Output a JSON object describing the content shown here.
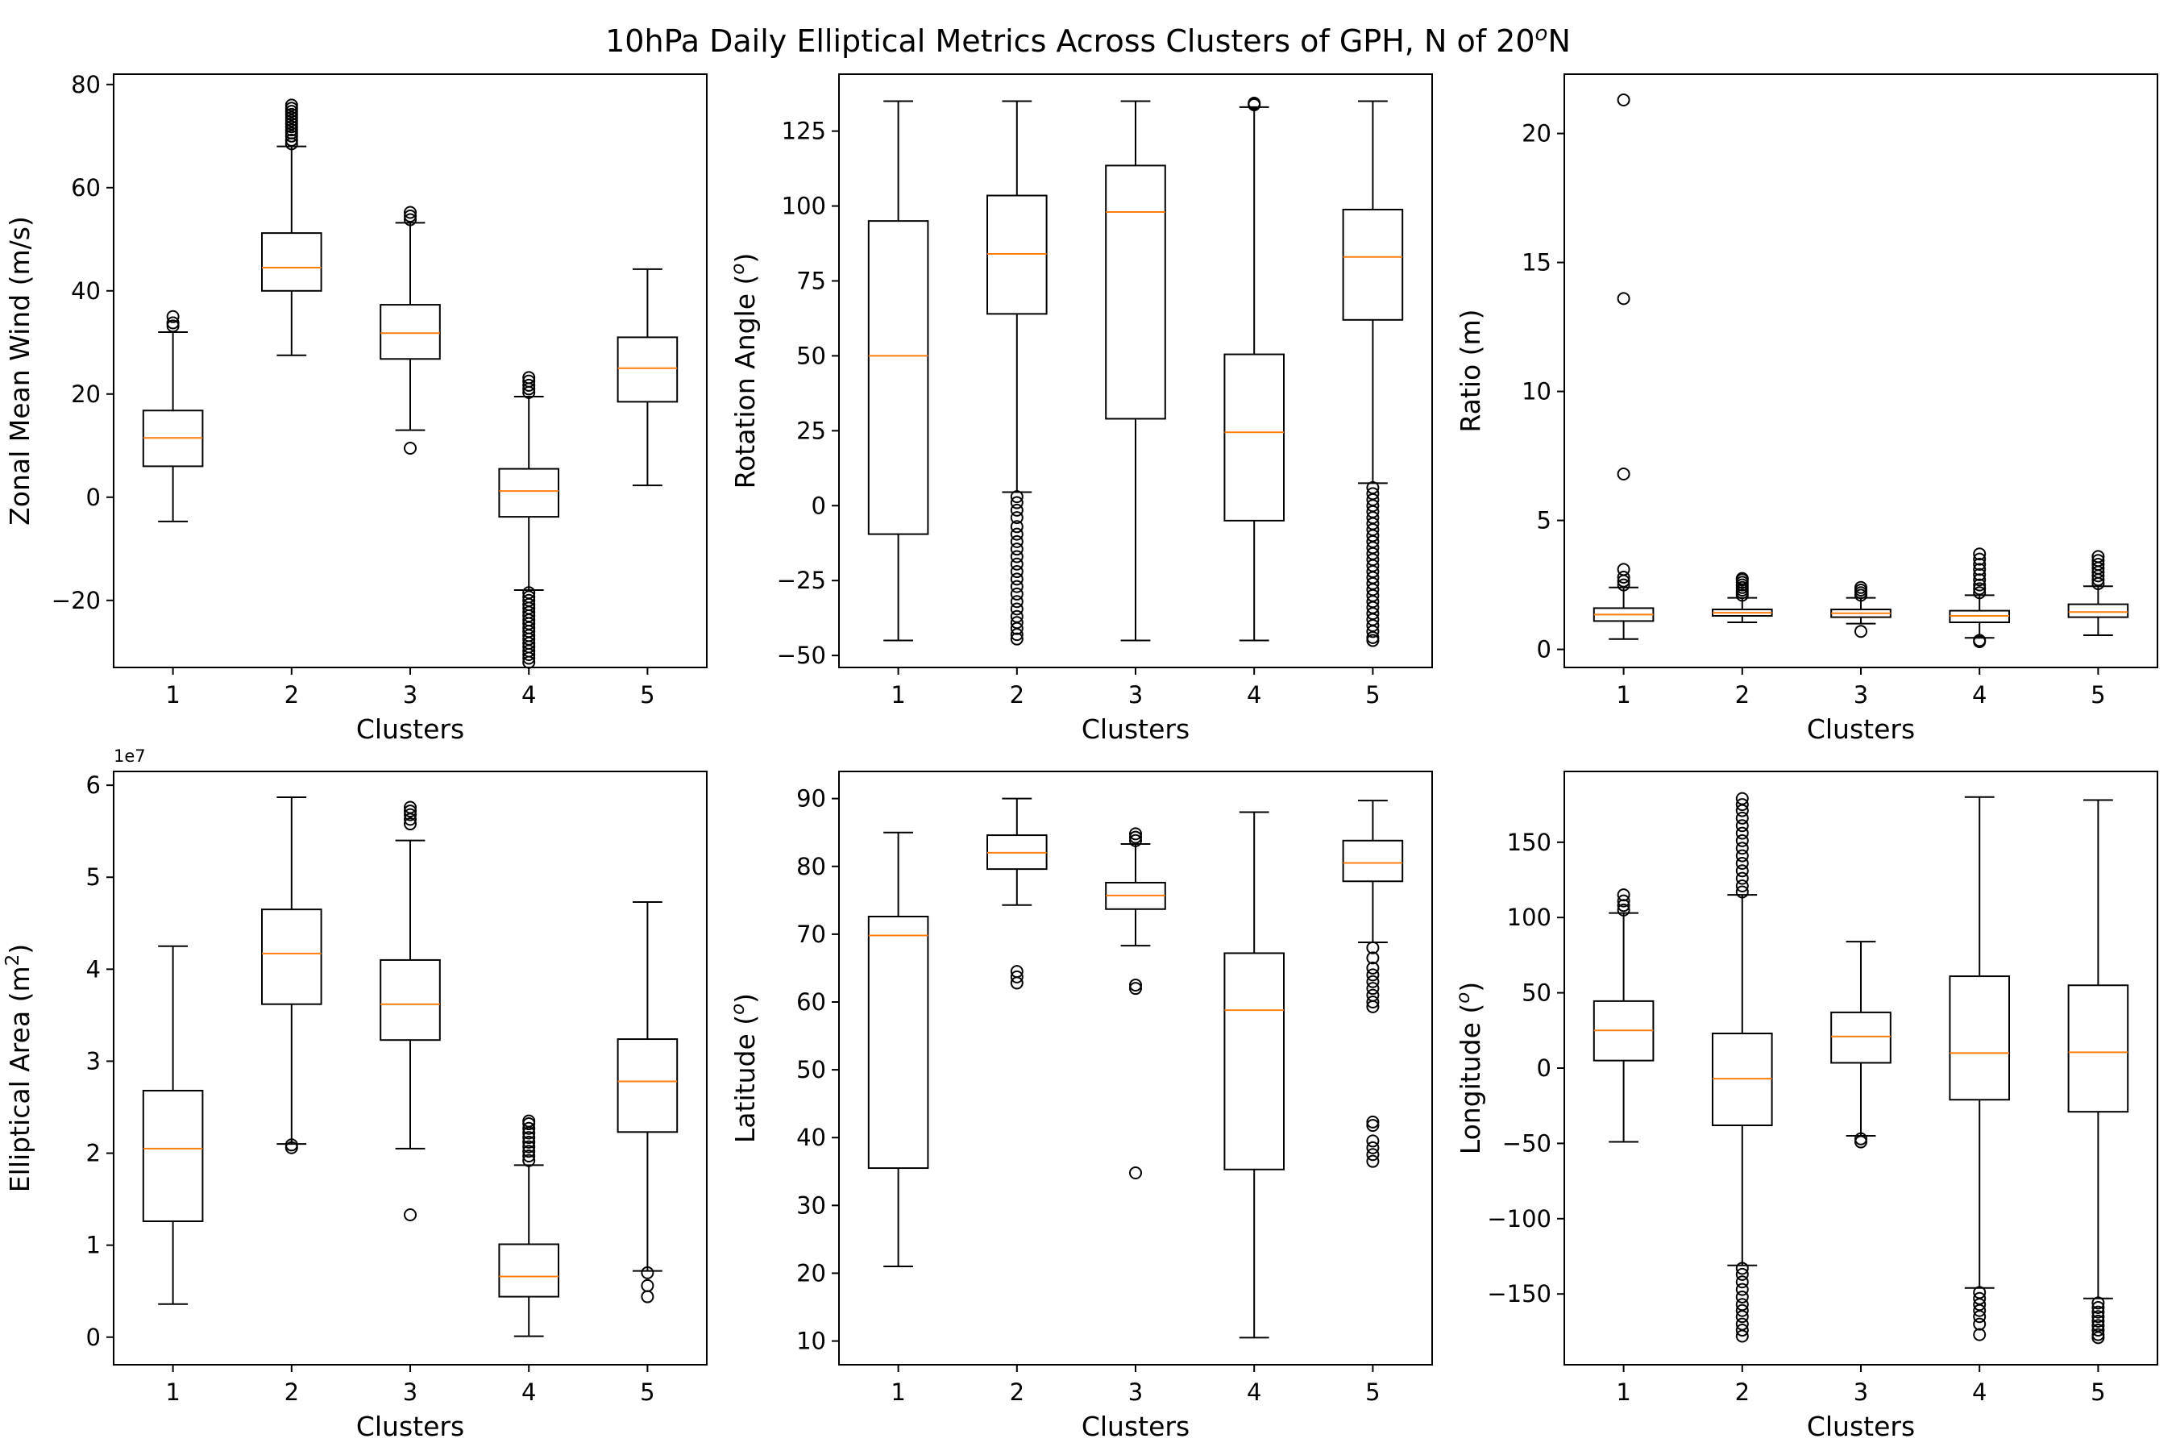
{
  "figure": {
    "title": "10hPa Daily Elliptical Metrics Across Clusters of GPH, N of 20",
    "title_sup": "o",
    "title_suffix": "N",
    "background": "#ffffff",
    "median_color": "#ff7f0e",
    "box_color": "#000000"
  },
  "chart_data": [
    {
      "type": "boxplot",
      "xlabel": "Clusters",
      "ylabel": "Zonal Mean Wind (m/s)",
      "ylabel_parts": [
        "Zonal Mean Wind (m/s)",
        "",
        ""
      ],
      "offset_text": "",
      "categories": [
        "1",
        "2",
        "3",
        "4",
        "5"
      ],
      "ylim": [
        -33,
        82
      ],
      "yticks": [
        -20,
        0,
        20,
        40,
        60,
        80
      ],
      "ytick_labels": [
        "−20",
        "0",
        "20",
        "40",
        "60",
        "80"
      ],
      "boxes": [
        {
          "whislo": -4.7,
          "q1": 6,
          "med": 11.5,
          "q3": 16.8,
          "whishi": 32,
          "fliers": [
            33.2,
            33.8,
            35
          ]
        },
        {
          "whislo": 27.5,
          "q1": 40,
          "med": 44.5,
          "q3": 51.2,
          "whishi": 68,
          "fliers": [
            68.5,
            69.2,
            70,
            70.6,
            71.2,
            71.8,
            72.4,
            73,
            73.6,
            74.2,
            74.8,
            75.4,
            76
          ]
        },
        {
          "whislo": 13,
          "q1": 26.8,
          "med": 31.8,
          "q3": 37.3,
          "whishi": 53.2,
          "fliers": [
            9.5,
            53.8,
            54.5,
            55.2
          ]
        },
        {
          "whislo": -18,
          "q1": -3.8,
          "med": 1.2,
          "q3": 5.5,
          "whishi": 19.5,
          "fliers": [
            20.3,
            21,
            21.7,
            22.5,
            23.2,
            -18.5,
            -19.3,
            -20,
            -20.8,
            -21.5,
            -22.3,
            -23,
            -23.8,
            -24.5,
            -25.3,
            -26,
            -26.8,
            -27.5,
            -28.3,
            -29,
            -29.8,
            -30.5,
            -31.2,
            -32
          ]
        },
        {
          "whislo": 2.3,
          "q1": 18.5,
          "med": 25,
          "q3": 31,
          "whishi": 44.2,
          "fliers": []
        }
      ]
    },
    {
      "type": "boxplot",
      "xlabel": "Clusters",
      "ylabel": "Rotation Angle (o)",
      "ylabel_parts": [
        "Rotation Angle (",
        "o",
        ")"
      ],
      "offset_text": "",
      "categories": [
        "1",
        "2",
        "3",
        "4",
        "5"
      ],
      "ylim": [
        -54,
        144
      ],
      "yticks": [
        -50,
        -25,
        0,
        25,
        50,
        75,
        100,
        125
      ],
      "ytick_labels": [
        "−50",
        "−25",
        "0",
        "25",
        "50",
        "75",
        "100",
        "125"
      ],
      "boxes": [
        {
          "whislo": -45,
          "q1": -9.5,
          "med": 50,
          "q3": 95,
          "whishi": 135,
          "fliers": []
        },
        {
          "whislo": 4.5,
          "q1": 64,
          "med": 84,
          "q3": 103.5,
          "whishi": 135,
          "fliers": [
            3,
            1,
            -1.5,
            -4,
            -7,
            -9.5,
            -12,
            -14.5,
            -17,
            -19.5,
            -22,
            -24.5,
            -27,
            -29.5,
            -32,
            -34.5,
            -37,
            -39,
            -41,
            -43,
            -44.5
          ]
        },
        {
          "whislo": -45,
          "q1": 29,
          "med": 98,
          "q3": 113.5,
          "whishi": 135,
          "fliers": []
        },
        {
          "whislo": -45,
          "q1": -5,
          "med": 24.5,
          "q3": 50.5,
          "whishi": 133,
          "fliers": [
            133.8,
            134.3
          ]
        },
        {
          "whislo": 7.5,
          "q1": 62,
          "med": 83,
          "q3": 98.8,
          "whishi": 135,
          "fliers": [
            6,
            4,
            2,
            0,
            -2,
            -4,
            -6,
            -8,
            -10,
            -12,
            -14,
            -16,
            -18,
            -20,
            -22,
            -24,
            -26,
            -28,
            -30,
            -32,
            -34,
            -36,
            -38,
            -40,
            -42,
            -44,
            -45
          ]
        }
      ]
    },
    {
      "type": "boxplot",
      "xlabel": "Clusters",
      "ylabel": "Ratio (m)",
      "ylabel_parts": [
        "Ratio (m)",
        "",
        ""
      ],
      "offset_text": "",
      "categories": [
        "1",
        "2",
        "3",
        "4",
        "5"
      ],
      "ylim": [
        -0.7,
        22.3
      ],
      "yticks": [
        0,
        5,
        10,
        15,
        20
      ],
      "ytick_labels": [
        "0",
        "5",
        "10",
        "15",
        "20"
      ],
      "boxes": [
        {
          "whislo": 0.4,
          "q1": 1.1,
          "med": 1.35,
          "q3": 1.6,
          "whishi": 2.4,
          "fliers": [
            2.5,
            2.65,
            2.8,
            3.1,
            6.8,
            13.6,
            21.3
          ]
        },
        {
          "whislo": 1.05,
          "q1": 1.3,
          "med": 1.42,
          "q3": 1.55,
          "whishi": 2.0,
          "fliers": [
            2.1,
            2.2,
            2.3,
            2.4,
            2.5,
            2.6,
            2.7,
            2.75
          ]
        },
        {
          "whislo": 1.0,
          "q1": 1.25,
          "med": 1.4,
          "q3": 1.55,
          "whishi": 2.0,
          "fliers": [
            0.7,
            2.1,
            2.2,
            2.3,
            2.4
          ]
        },
        {
          "whislo": 0.45,
          "q1": 1.05,
          "med": 1.3,
          "q3": 1.5,
          "whishi": 2.1,
          "fliers": [
            0.35,
            0.3,
            2.2,
            2.35,
            2.5,
            2.7,
            2.9,
            3.1,
            3.3,
            3.5,
            3.7
          ]
        },
        {
          "whislo": 0.55,
          "q1": 1.25,
          "med": 1.45,
          "q3": 1.75,
          "whishi": 2.45,
          "fliers": [
            2.55,
            2.7,
            2.85,
            3.0,
            3.15,
            3.3,
            3.45,
            3.6
          ]
        }
      ]
    },
    {
      "type": "boxplot",
      "xlabel": "Clusters",
      "ylabel": "Elliptical Area (m2)",
      "ylabel_parts": [
        "Elliptical Area (m",
        "2",
        ")"
      ],
      "offset_text": "1e7",
      "categories": [
        "1",
        "2",
        "3",
        "4",
        "5"
      ],
      "ylim": [
        -0.3,
        6.15
      ],
      "yticks": [
        0,
        1,
        2,
        3,
        4,
        5,
        6
      ],
      "ytick_labels": [
        "0",
        "1",
        "2",
        "3",
        "4",
        "5",
        "6"
      ],
      "boxes": [
        {
          "whislo": 0.36,
          "q1": 1.26,
          "med": 2.05,
          "q3": 2.68,
          "whishi": 4.25,
          "fliers": []
        },
        {
          "whislo": 2.1,
          "q1": 3.62,
          "med": 4.17,
          "q3": 4.65,
          "whishi": 5.87,
          "fliers": [
            2.06,
            2.09
          ]
        },
        {
          "whislo": 2.05,
          "q1": 3.23,
          "med": 3.62,
          "q3": 4.1,
          "whishi": 5.4,
          "fliers": [
            1.33,
            5.58,
            5.63,
            5.68,
            5.72,
            5.76
          ]
        },
        {
          "whislo": 0.01,
          "q1": 0.44,
          "med": 0.66,
          "q3": 1.01,
          "whishi": 1.87,
          "fliers": [
            1.92,
            1.97,
            2.02,
            2.07,
            2.12,
            2.17,
            2.22,
            2.27,
            2.32,
            2.35
          ]
        },
        {
          "whislo": 0.72,
          "q1": 2.23,
          "med": 2.78,
          "q3": 3.24,
          "whishi": 4.73,
          "fliers": [
            0.7,
            0.56,
            0.44
          ]
        }
      ]
    },
    {
      "type": "boxplot",
      "xlabel": "Clusters",
      "ylabel": "Latitude (o)",
      "ylabel_parts": [
        "Latitude (",
        "o",
        ")"
      ],
      "offset_text": "",
      "categories": [
        "1",
        "2",
        "3",
        "4",
        "5"
      ],
      "ylim": [
        6.5,
        94
      ],
      "yticks": [
        10,
        20,
        30,
        40,
        50,
        60,
        70,
        80,
        90
      ],
      "ytick_labels": [
        "10",
        "20",
        "30",
        "40",
        "50",
        "60",
        "70",
        "80",
        "90"
      ],
      "boxes": [
        {
          "whislo": 21,
          "q1": 35.5,
          "med": 69.8,
          "q3": 72.6,
          "whishi": 85,
          "fliers": []
        },
        {
          "whislo": 74.3,
          "q1": 79.6,
          "med": 82,
          "q3": 84.6,
          "whishi": 90,
          "fliers": [
            64.5,
            63.7,
            62.8
          ]
        },
        {
          "whislo": 68.3,
          "q1": 73.7,
          "med": 75.7,
          "q3": 77.6,
          "whishi": 83.3,
          "fliers": [
            34.8,
            62,
            62.5,
            83.8,
            84.3,
            84.8
          ]
        },
        {
          "whislo": 10.5,
          "q1": 35.3,
          "med": 58.8,
          "q3": 67.2,
          "whishi": 88,
          "fliers": []
        },
        {
          "whislo": 68.8,
          "q1": 77.8,
          "med": 80.5,
          "q3": 83.8,
          "whishi": 89.7,
          "fliers": [
            68,
            66.5,
            65,
            64,
            63,
            62,
            61,
            60,
            59.3,
            42.3,
            41.8,
            39.5,
            38.5,
            37.5,
            36.5
          ]
        }
      ]
    },
    {
      "type": "boxplot",
      "xlabel": "Clusters",
      "ylabel": "Longitude (o)",
      "ylabel_parts": [
        "Longitude (",
        "o",
        ")"
      ],
      "offset_text": "",
      "categories": [
        "1",
        "2",
        "3",
        "4",
        "5"
      ],
      "ylim": [
        -197,
        197
      ],
      "yticks": [
        -150,
        -100,
        -50,
        0,
        50,
        100,
        150
      ],
      "ytick_labels": [
        "−150",
        "−100",
        "−50",
        "0",
        "50",
        "100",
        "150"
      ],
      "boxes": [
        {
          "whislo": -49,
          "q1": 5,
          "med": 25,
          "q3": 44.5,
          "whishi": 103,
          "fliers": [
            105,
            108,
            111,
            115
          ]
        },
        {
          "whislo": -131,
          "q1": -38,
          "med": -7,
          "q3": 23,
          "whishi": 115,
          "fliers": [
            117,
            121,
            126,
            131,
            136,
            141,
            146,
            151,
            156,
            161,
            166,
            171,
            175,
            179,
            -133,
            -137,
            -142,
            -147,
            -152,
            -157,
            -161,
            -165,
            -170,
            -174,
            -178
          ]
        },
        {
          "whislo": -45,
          "q1": 3.5,
          "med": 21,
          "q3": 37,
          "whishi": 84,
          "fliers": [
            -47,
            -49
          ]
        },
        {
          "whislo": -146,
          "q1": -21,
          "med": 10,
          "q3": 61,
          "whishi": 180,
          "fliers": [
            -149,
            -153,
            -157,
            -161,
            -165,
            -170,
            -177
          ]
        },
        {
          "whislo": -153,
          "q1": -29,
          "med": 10.5,
          "q3": 55,
          "whishi": 178,
          "fliers": [
            -156,
            -159,
            -162,
            -165,
            -168,
            -171,
            -174,
            -177,
            -179
          ]
        }
      ]
    }
  ]
}
